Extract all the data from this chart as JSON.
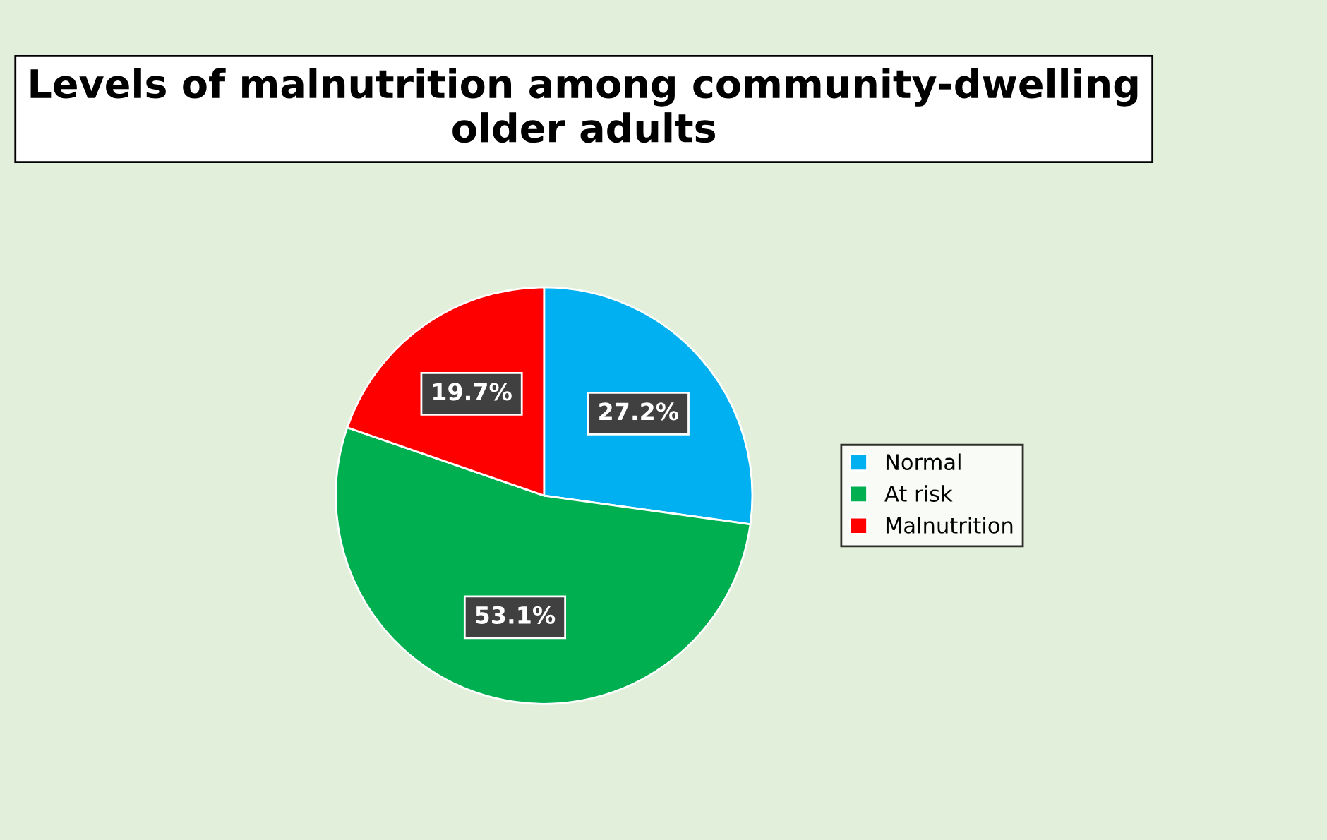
{
  "chart_data": {
    "type": "pie",
    "title": "Levels of malnutrition among community-dwelling older adults",
    "categories": [
      "Normal",
      "At risk",
      "Malnutrition"
    ],
    "values": [
      27.2,
      53.1,
      19.7
    ],
    "colors": [
      "#00b0f0",
      "#00b050",
      "#ff0000"
    ],
    "value_labels": [
      "27.2%",
      "53.1%",
      "19.7%"
    ],
    "legend": "right"
  }
}
